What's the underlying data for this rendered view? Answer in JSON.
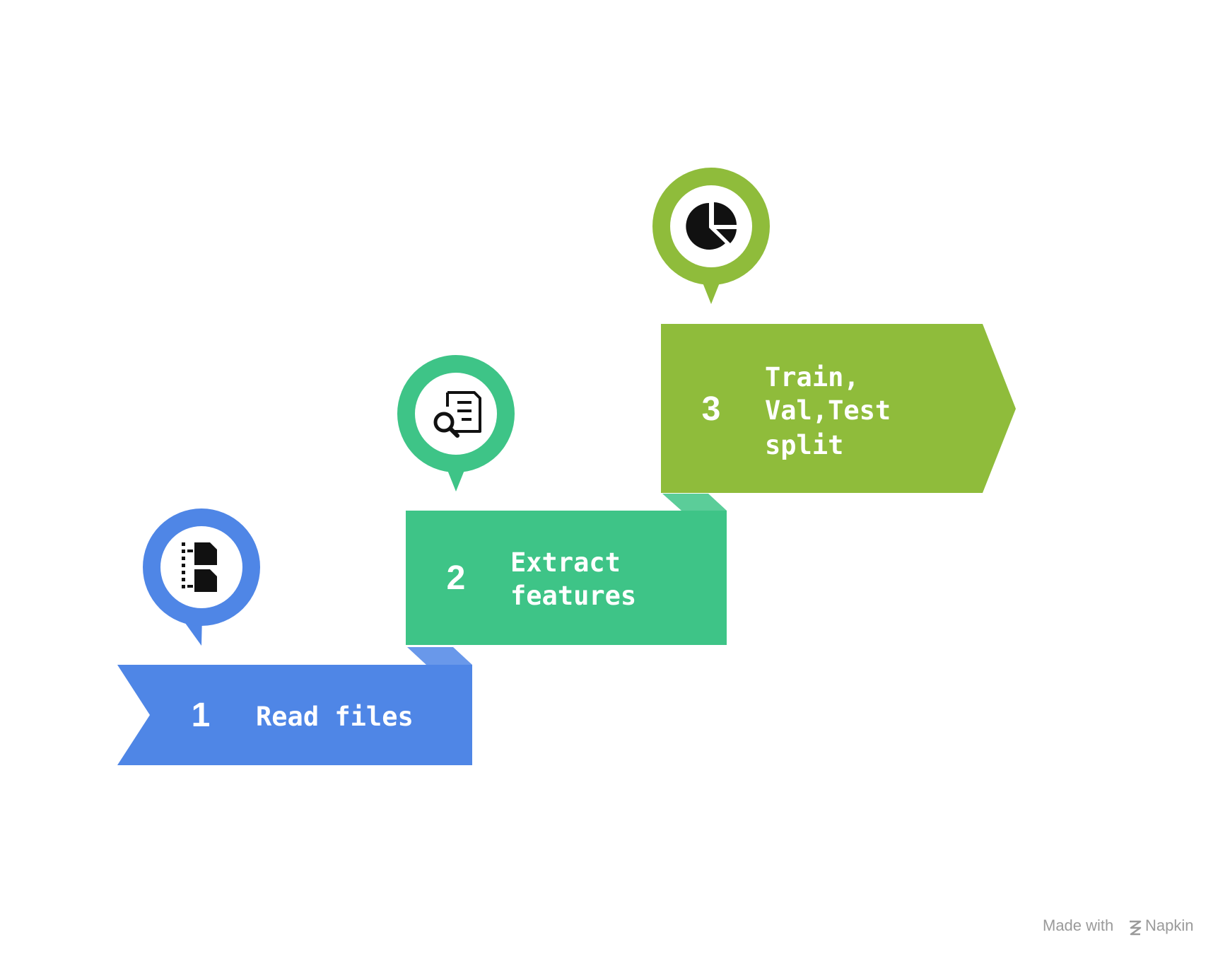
{
  "colors": {
    "step1": "#4f86e6",
    "step2": "#3ec487",
    "step3": "#8fbc3b",
    "icon": "#111111",
    "text": "#ffffff",
    "watermark": "#9a9a9a"
  },
  "steps": [
    {
      "number": "1",
      "lines": [
        "Read files"
      ],
      "icon": "file-split-icon"
    },
    {
      "number": "2",
      "lines": [
        "Extract",
        "features"
      ],
      "icon": "document-search-icon"
    },
    {
      "number": "3",
      "lines": [
        "Train,",
        "Val,Test",
        "split"
      ],
      "icon": "pie-chart-icon"
    }
  ],
  "watermark": {
    "prefix": "Made with",
    "brand": "Napkin"
  }
}
